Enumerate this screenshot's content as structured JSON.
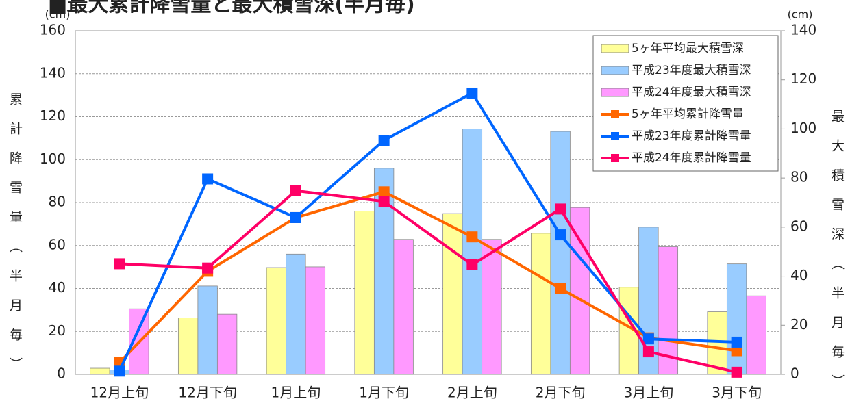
{
  "chart_data": {
    "type": "bar",
    "title": "■最大累計降雪量と最大積雪深(半月毎)",
    "y_unit": "(cm)",
    "y2_unit": "(cm)",
    "y_label": "累計降雪量（半月毎）",
    "y2_label": "最大積雪深（半月毎）",
    "categories": [
      "12月上旬",
      "12月下旬",
      "1月上旬",
      "1月下旬",
      "2月上旬",
      "2月下旬",
      "3月上旬",
      "3月下旬"
    ],
    "ylim": [
      0,
      160
    ],
    "yticks": [
      0,
      20,
      40,
      60,
      80,
      100,
      120,
      140,
      160
    ],
    "y2lim": [
      0,
      140
    ],
    "y2ticks": [
      0,
      20,
      40,
      60,
      80,
      100,
      120,
      140
    ],
    "grid": true,
    "legend": "upper right",
    "series": [
      {
        "name": "5ヶ年平均最大積雪深",
        "type": "bar",
        "axis": "y2",
        "color": "#ffff99",
        "values": [
          2.5,
          23,
          43.5,
          66.5,
          65.5,
          57.5,
          35.5,
          25.5
        ]
      },
      {
        "name": "平成23年度最大積雪深",
        "type": "bar",
        "axis": "y2",
        "color": "#99ccff",
        "values": [
          1.8,
          36,
          49,
          84,
          100,
          99,
          60,
          45
        ]
      },
      {
        "name": "平成24年度最大積雪深",
        "type": "bar",
        "axis": "y2",
        "color": "#ff99ff",
        "values": [
          26.7,
          24.5,
          43.8,
          55,
          55,
          68,
          52,
          32
        ]
      },
      {
        "name": "5ヶ年平均累計降雪量",
        "type": "line",
        "color": "#ff6600",
        "values": [
          5.5,
          48,
          73,
          85,
          64,
          40,
          17,
          11
        ]
      },
      {
        "name": "平成23年度累計降雪量",
        "type": "line",
        "color": "#0066ff",
        "values": [
          1.5,
          91,
          73,
          109,
          131,
          65,
          16.5,
          15
        ]
      },
      {
        "name": "平成24年度累計降雪量",
        "type": "line",
        "color": "#ff0066",
        "values": [
          51.5,
          49.5,
          85.5,
          80.5,
          51,
          77,
          10.5,
          1
        ]
      }
    ]
  }
}
